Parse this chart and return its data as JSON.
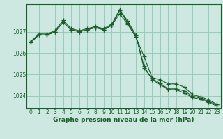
{
  "background_color": "#cce8e0",
  "plot_bg_color": "#cce8e0",
  "grid_color": "#99ccbb",
  "line_color": "#1a5c2a",
  "xlabel": "Graphe pression niveau de la mer (hPa)",
  "ylim": [
    1023.4,
    1028.3
  ],
  "xlim": [
    -0.5,
    23.5
  ],
  "yticks": [
    1024,
    1025,
    1026,
    1027
  ],
  "xticks": [
    0,
    1,
    2,
    3,
    4,
    5,
    6,
    7,
    8,
    9,
    10,
    11,
    12,
    13,
    14,
    15,
    16,
    17,
    18,
    19,
    20,
    21,
    22,
    23
  ],
  "series": [
    [
      1026.55,
      1026.85,
      1026.85,
      1027.0,
      1027.45,
      1027.1,
      1027.0,
      1027.1,
      1027.2,
      1027.1,
      1027.3,
      1027.85,
      1027.35,
      1026.75,
      1025.85,
      1024.85,
      1024.75,
      1024.55,
      1024.55,
      1024.4,
      1024.05,
      1023.95,
      1023.8,
      1023.6
    ],
    [
      1026.55,
      1026.9,
      1026.9,
      1027.05,
      1027.55,
      1027.15,
      1027.05,
      1027.15,
      1027.25,
      1027.15,
      1027.35,
      1028.05,
      1027.5,
      1026.85,
      1025.3,
      1024.8,
      1024.58,
      1024.32,
      1024.32,
      1024.22,
      1023.98,
      1023.88,
      1023.72,
      1023.58
    ],
    [
      1026.5,
      1026.85,
      1026.85,
      1027.0,
      1027.45,
      1027.1,
      1027.0,
      1027.1,
      1027.2,
      1027.1,
      1027.3,
      1028.0,
      1027.42,
      1026.82,
      1025.4,
      1024.75,
      1024.52,
      1024.28,
      1024.28,
      1024.12,
      1023.92,
      1023.82,
      1023.68,
      1023.52
    ]
  ],
  "marker": "+",
  "markersize": 4,
  "linewidth": 0.8,
  "tick_fontsize": 5.5,
  "xlabel_fontsize": 6.5
}
